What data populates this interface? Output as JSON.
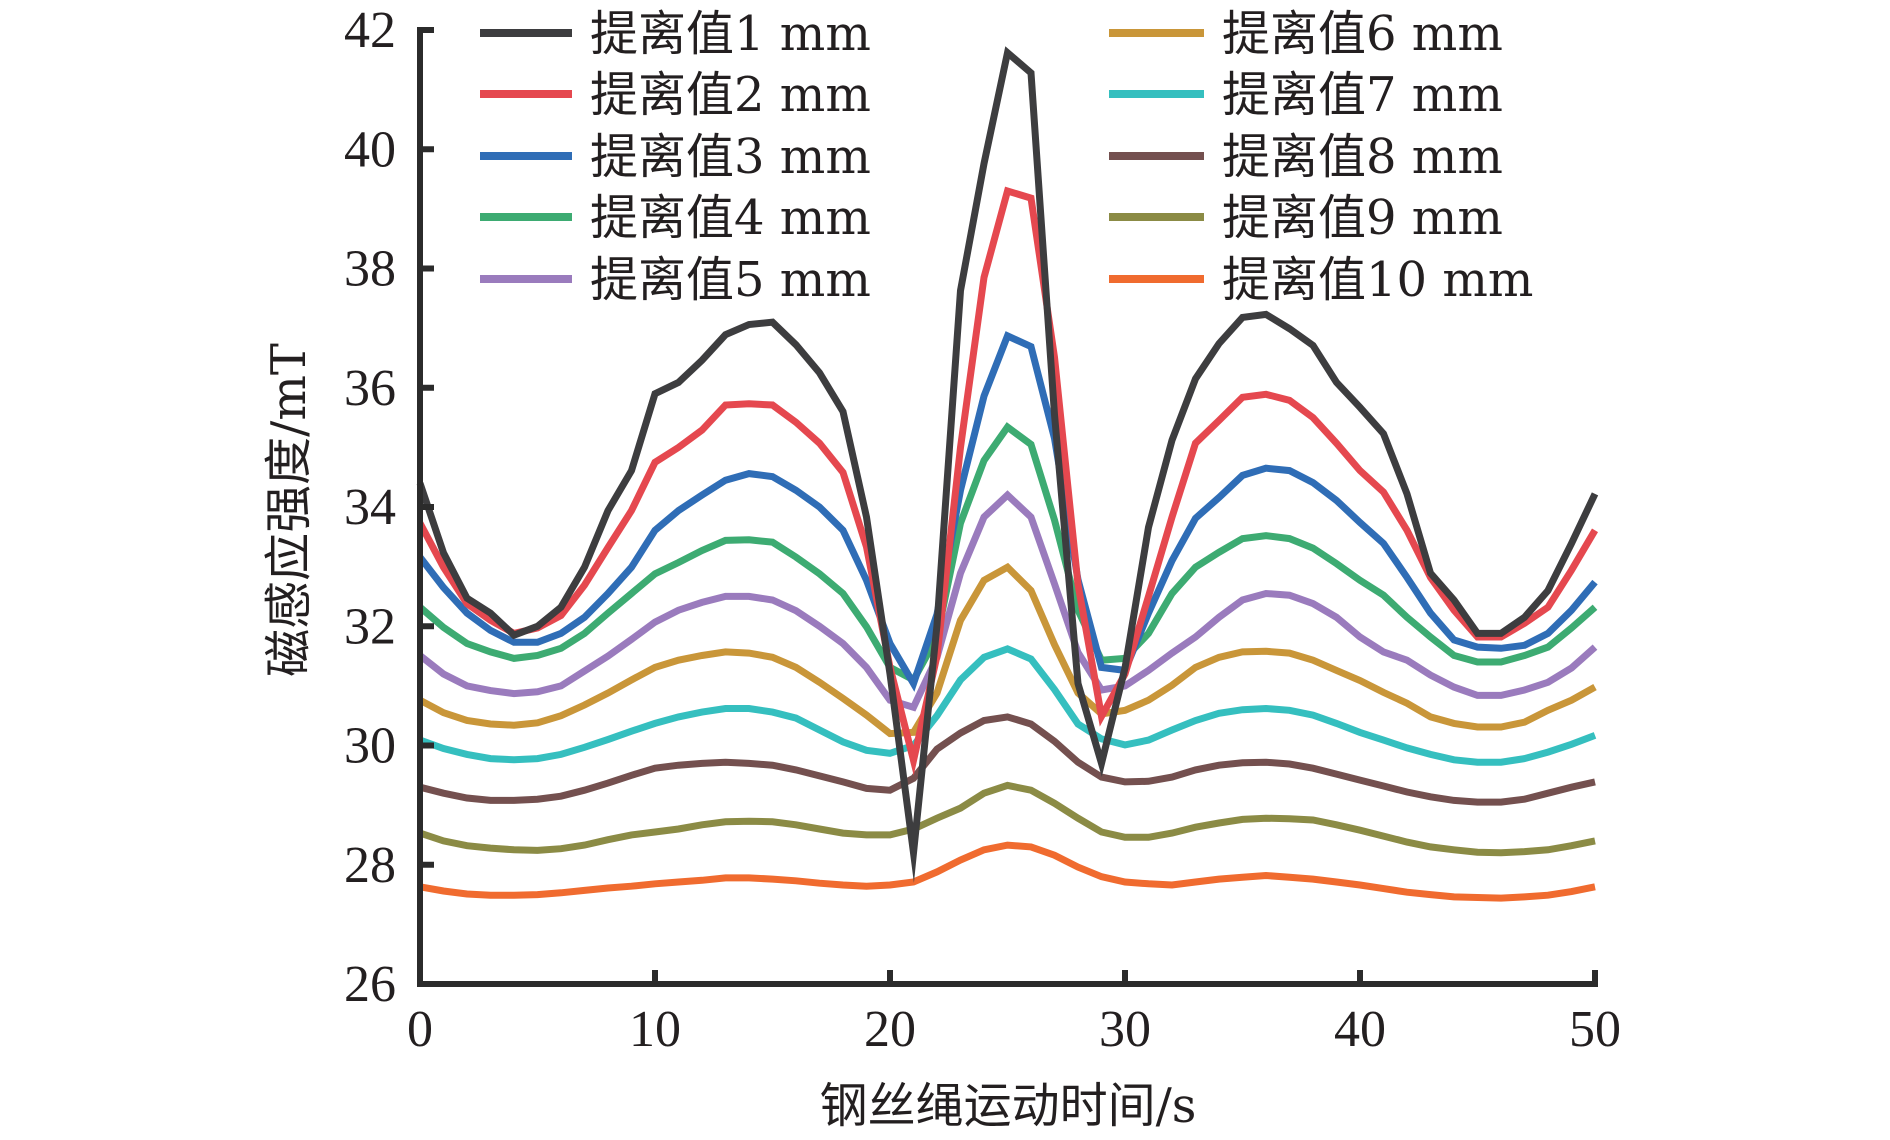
{
  "chart_data": {
    "type": "line",
    "title": "",
    "xlabel": "钢丝绳运动时间/s",
    "ylabel": "磁感应强度/mT",
    "xlim": [
      0,
      50
    ],
    "ylim": [
      26,
      42
    ],
    "xticks": [
      0,
      10,
      20,
      30,
      40,
      50
    ],
    "yticks": [
      26,
      28,
      30,
      32,
      34,
      36,
      38,
      40,
      42
    ],
    "xtick_labels": [
      "0",
      "10",
      "20",
      "30",
      "40",
      "50"
    ],
    "ytick_labels": [
      "26",
      "28",
      "30",
      "32",
      "34",
      "36",
      "38",
      "40",
      "42"
    ],
    "grid": false,
    "legend_position": "top",
    "x": [
      0,
      1,
      2,
      3,
      4,
      5,
      6,
      7,
      8,
      9,
      10,
      11,
      12,
      13,
      14,
      15,
      16,
      17,
      18,
      19,
      20,
      21,
      22,
      23,
      24,
      25,
      26,
      27,
      28,
      29,
      30,
      31,
      32,
      33,
      34,
      35,
      36,
      37,
      38,
      39,
      40,
      41,
      42,
      43,
      44,
      45,
      46,
      47,
      48,
      49,
      50
    ],
    "series": [
      {
        "name": "提离值1 mm",
        "color": "#3d3d3f",
        "values": [
          34.4,
          33.23,
          32.47,
          32.22,
          31.85,
          32.0,
          32.32,
          32.99,
          33.94,
          34.61,
          35.9,
          36.09,
          36.46,
          36.89,
          37.06,
          37.1,
          36.72,
          36.25,
          35.6,
          33.83,
          31.2,
          28.2,
          32.02,
          37.63,
          39.76,
          41.62,
          41.28,
          35.55,
          31.04,
          29.7,
          31.3,
          33.66,
          35.12,
          36.15,
          36.74,
          37.18,
          37.23,
          36.99,
          36.71,
          36.09,
          35.67,
          35.23,
          34.22,
          32.89,
          32.44,
          31.88,
          31.88,
          32.15,
          32.6,
          33.39,
          34.22
        ]
      },
      {
        "name": "提离值2 mm",
        "color": "#e5484f",
        "values": [
          33.73,
          32.99,
          32.38,
          32.1,
          31.88,
          31.97,
          32.18,
          32.69,
          33.32,
          33.94,
          34.75,
          35.0,
          35.29,
          35.71,
          35.73,
          35.71,
          35.42,
          35.07,
          34.58,
          33.33,
          31.31,
          29.75,
          31.5,
          35.0,
          37.85,
          39.3,
          39.18,
          36.51,
          32.7,
          30.49,
          31.2,
          32.5,
          33.83,
          35.07,
          35.45,
          35.84,
          35.89,
          35.79,
          35.5,
          35.07,
          34.61,
          34.25,
          33.61,
          32.82,
          32.27,
          31.82,
          31.82,
          32.05,
          32.32,
          32.94,
          33.61
        ]
      },
      {
        "name": "提离值3 mm",
        "color": "#2f6db6",
        "values": [
          33.16,
          32.65,
          32.22,
          31.93,
          31.73,
          31.73,
          31.88,
          32.15,
          32.55,
          32.99,
          33.61,
          33.94,
          34.2,
          34.45,
          34.56,
          34.51,
          34.28,
          34.0,
          33.61,
          32.77,
          31.71,
          31.04,
          32.2,
          34.28,
          35.86,
          36.87,
          36.69,
          35.15,
          32.78,
          31.31,
          31.26,
          32.22,
          33.1,
          33.81,
          34.16,
          34.53,
          34.65,
          34.61,
          34.41,
          34.11,
          33.74,
          33.39,
          32.82,
          32.22,
          31.77,
          31.65,
          31.63,
          31.68,
          31.88,
          32.27,
          32.74
        ]
      },
      {
        "name": "提离值4 mm",
        "color": "#3dab72",
        "values": [
          32.32,
          31.98,
          31.71,
          31.57,
          31.46,
          31.51,
          31.63,
          31.88,
          32.22,
          32.55,
          32.88,
          33.07,
          33.27,
          33.44,
          33.45,
          33.41,
          33.16,
          32.88,
          32.55,
          31.99,
          31.31,
          31.1,
          31.82,
          33.73,
          34.78,
          35.34,
          35.05,
          33.78,
          32.27,
          31.43,
          31.46,
          31.88,
          32.55,
          32.99,
          33.24,
          33.47,
          33.52,
          33.47,
          33.31,
          33.05,
          32.77,
          32.52,
          32.15,
          31.82,
          31.51,
          31.4,
          31.4,
          31.51,
          31.65,
          31.97,
          32.32
        ]
      },
      {
        "name": "提离值5 mm",
        "color": "#9a7bbd",
        "values": [
          31.51,
          31.2,
          31.0,
          30.92,
          30.87,
          30.9,
          31.0,
          31.25,
          31.5,
          31.78,
          32.07,
          32.27,
          32.4,
          32.5,
          32.5,
          32.44,
          32.26,
          32.0,
          31.71,
          31.31,
          30.76,
          30.64,
          31.48,
          32.89,
          33.83,
          34.2,
          33.83,
          32.71,
          31.56,
          30.93,
          31.0,
          31.26,
          31.55,
          31.82,
          32.15,
          32.44,
          32.55,
          32.52,
          32.38,
          32.15,
          31.82,
          31.57,
          31.43,
          31.18,
          30.98,
          30.84,
          30.84,
          30.93,
          31.06,
          31.3,
          31.65
        ]
      },
      {
        "name": "提离值6 mm",
        "color": "#c99639",
        "values": [
          30.76,
          30.55,
          30.42,
          30.36,
          30.34,
          30.38,
          30.5,
          30.68,
          30.88,
          31.1,
          31.31,
          31.43,
          31.51,
          31.57,
          31.55,
          31.48,
          31.31,
          31.06,
          30.79,
          30.51,
          30.2,
          30.22,
          30.88,
          32.1,
          32.77,
          32.99,
          32.6,
          31.69,
          30.88,
          30.53,
          30.59,
          30.76,
          31.01,
          31.31,
          31.48,
          31.57,
          31.58,
          31.55,
          31.43,
          31.26,
          31.09,
          30.89,
          30.71,
          30.48,
          30.37,
          30.31,
          30.31,
          30.39,
          30.59,
          30.76,
          30.98
        ]
      },
      {
        "name": "提离值7 mm",
        "color": "#35bfbf",
        "values": [
          30.09,
          29.95,
          29.85,
          29.78,
          29.76,
          29.78,
          29.85,
          29.97,
          30.1,
          30.24,
          30.37,
          30.48,
          30.56,
          30.62,
          30.62,
          30.56,
          30.46,
          30.26,
          30.06,
          29.92,
          29.87,
          30.0,
          30.5,
          31.1,
          31.48,
          31.62,
          31.45,
          30.94,
          30.36,
          30.11,
          30.01,
          30.09,
          30.26,
          30.42,
          30.54,
          30.6,
          30.62,
          30.59,
          30.51,
          30.37,
          30.22,
          30.09,
          29.96,
          29.85,
          29.76,
          29.72,
          29.72,
          29.78,
          29.89,
          30.02,
          30.17
        ]
      },
      {
        "name": "提离值8 mm",
        "color": "#74504f",
        "values": [
          29.3,
          29.2,
          29.12,
          29.08,
          29.08,
          29.1,
          29.15,
          29.25,
          29.37,
          29.5,
          29.62,
          29.67,
          29.7,
          29.72,
          29.7,
          29.67,
          29.59,
          29.49,
          29.39,
          29.28,
          29.25,
          29.45,
          29.94,
          30.21,
          30.42,
          30.48,
          30.36,
          30.07,
          29.72,
          29.47,
          29.39,
          29.4,
          29.47,
          29.59,
          29.67,
          29.71,
          29.72,
          29.69,
          29.62,
          29.52,
          29.42,
          29.32,
          29.22,
          29.14,
          29.08,
          29.05,
          29.05,
          29.1,
          29.2,
          29.3,
          29.39
        ]
      },
      {
        "name": "提离值9 mm",
        "color": "#8b8b45",
        "values": [
          28.53,
          28.4,
          28.32,
          28.28,
          28.25,
          28.24,
          28.27,
          28.33,
          28.42,
          28.5,
          28.55,
          28.6,
          28.67,
          28.72,
          28.73,
          28.72,
          28.67,
          28.6,
          28.53,
          28.5,
          28.5,
          28.6,
          28.78,
          28.95,
          29.2,
          29.33,
          29.25,
          29.03,
          28.78,
          28.55,
          28.46,
          28.46,
          28.53,
          28.63,
          28.7,
          28.76,
          28.78,
          28.77,
          28.75,
          28.67,
          28.58,
          28.48,
          28.38,
          28.3,
          28.25,
          28.21,
          28.2,
          28.22,
          28.25,
          28.32,
          28.4
        ]
      },
      {
        "name": "提离值10 mm",
        "color": "#f06b2f",
        "values": [
          27.63,
          27.56,
          27.51,
          27.49,
          27.49,
          27.5,
          27.53,
          27.57,
          27.61,
          27.64,
          27.68,
          27.71,
          27.74,
          27.78,
          27.78,
          27.76,
          27.73,
          27.69,
          27.66,
          27.64,
          27.66,
          27.71,
          27.88,
          28.08,
          28.25,
          28.33,
          28.3,
          28.16,
          27.96,
          27.8,
          27.71,
          27.68,
          27.66,
          27.71,
          27.76,
          27.79,
          27.82,
          27.79,
          27.76,
          27.71,
          27.66,
          27.6,
          27.54,
          27.5,
          27.46,
          27.45,
          27.44,
          27.46,
          27.49,
          27.55,
          27.63
        ]
      }
    ]
  }
}
